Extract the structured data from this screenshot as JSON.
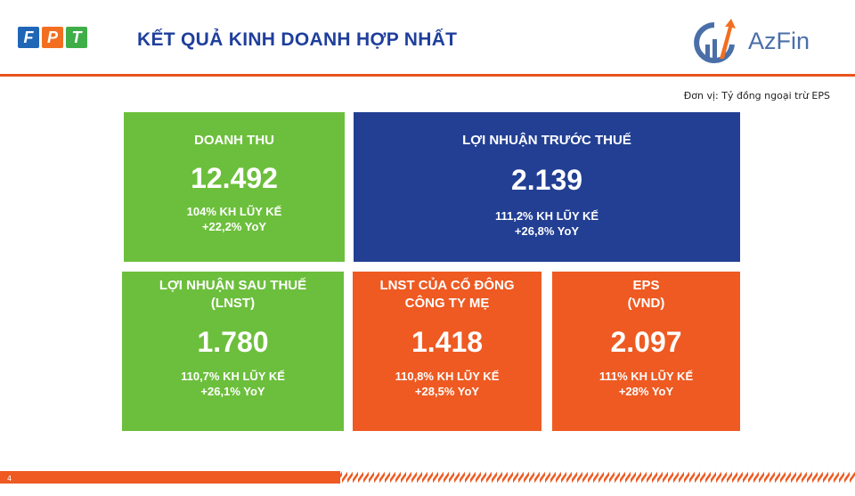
{
  "header": {
    "fpt_letters": [
      "F",
      "P",
      "T"
    ],
    "title": "KẾT QUẢ KINH DOANH HỢP NHẤT",
    "brand": "AzFin"
  },
  "unit_note": "Đơn vị: Tỷ đồng ngoại trừ EPS",
  "colors": {
    "green": "#6cbf3c",
    "blue": "#223f93",
    "orange": "#ee5a22",
    "fpt_blue": "#1f66b7",
    "fpt_orange": "#f26f21",
    "fpt_green": "#3fae49"
  },
  "cards": [
    {
      "label": "DOANH THU",
      "value": "12.492",
      "plan": "104% KH LŨY KẾ",
      "yoy": "+22,2% YoY"
    },
    {
      "label": "LỢI NHUẬN TRƯỚC THUẾ",
      "value": "2.139",
      "plan": "111,2% KH LŨY KẾ",
      "yoy": "+26,8% YoY"
    },
    {
      "label": "LỢI NHUẬN SAU THUẾ",
      "label2": "(LNST)",
      "value": "1.780",
      "plan": "110,7% KH LŨY KẾ",
      "yoy": "+26,1% YoY"
    },
    {
      "label": "LNST CỦA CỔ ĐÔNG",
      "label2": "CÔNG TY MẸ",
      "value": "1.418",
      "plan": "110,8% KH LŨY KẾ",
      "yoy": "+28,5% YoY"
    },
    {
      "label": "EPS",
      "label2": "(VND)",
      "value": "2.097",
      "plan": "111% KH LŨY KẾ",
      "yoy": "+28% YoY"
    }
  ],
  "page_number": "4"
}
